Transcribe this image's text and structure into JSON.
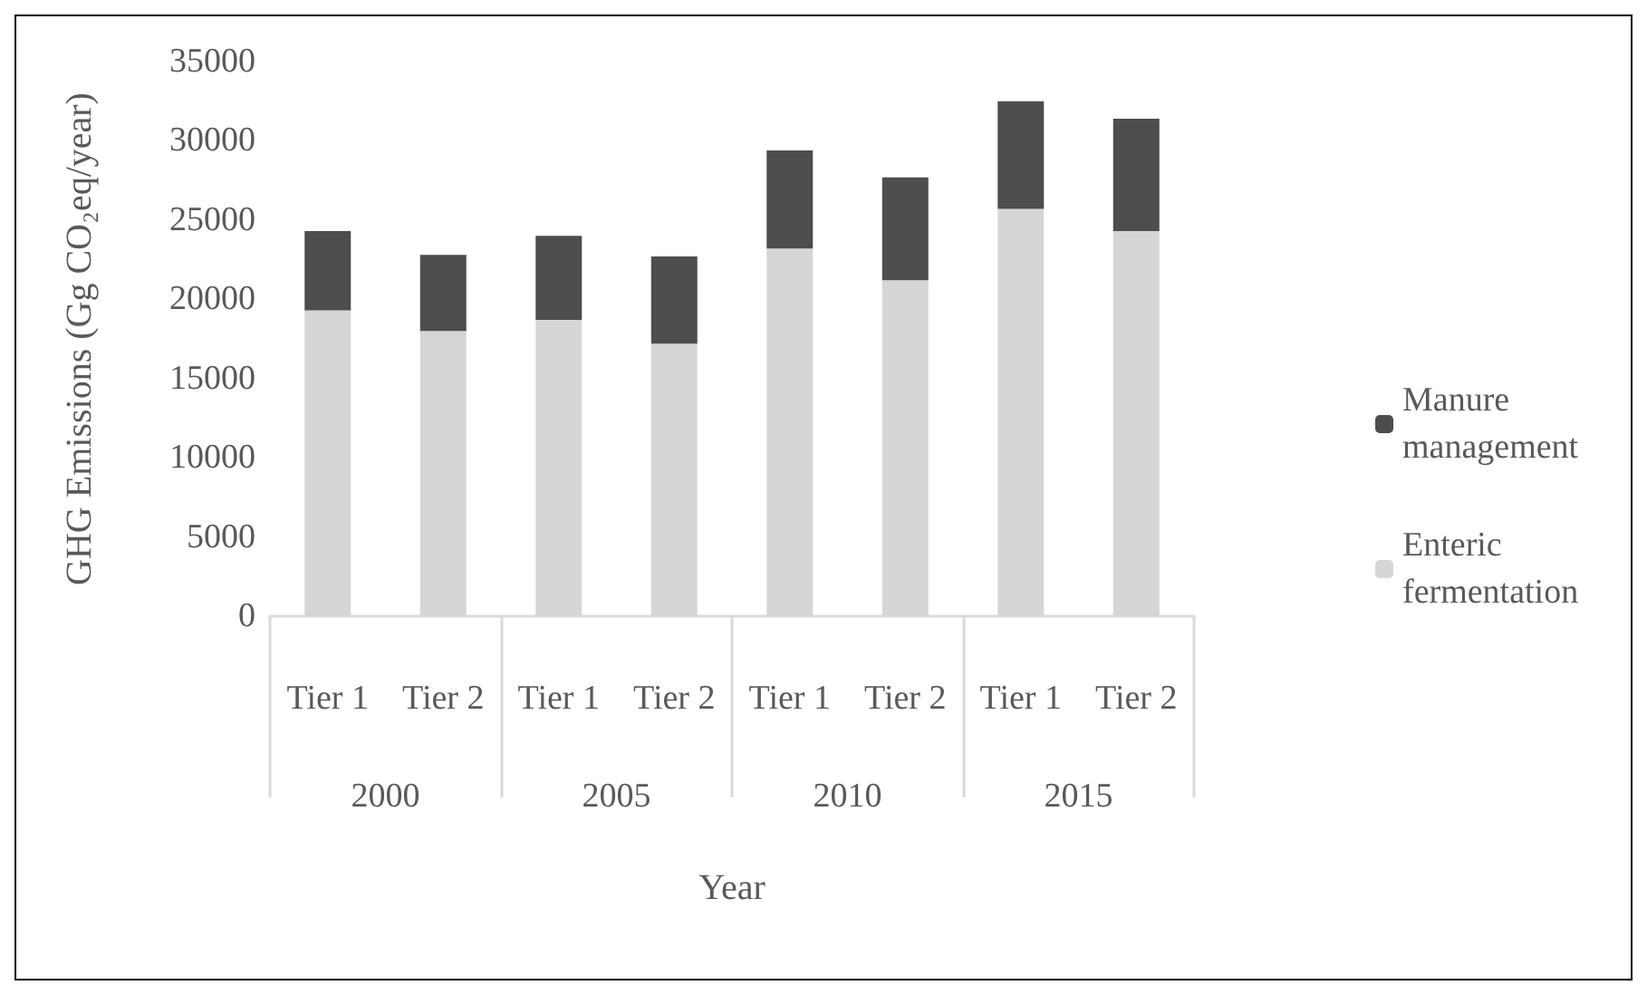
{
  "chart_data": {
    "type": "bar",
    "stacked": true,
    "xlabel": "Year",
    "ylabel": "GHG Emissions (Gg CO₂eq/year)",
    "categories": [
      "Tier 1",
      "Tier 2",
      "Tier 1",
      "Tier 2",
      "Tier 1",
      "Tier 2",
      "Tier 1",
      "Tier 2"
    ],
    "annotations": [
      "2000",
      "2005",
      "2010",
      "2015"
    ],
    "series": [
      {
        "name": "Enteric fermentation",
        "color": "#d6d6d6",
        "values": [
          19300,
          18000,
          18700,
          17200,
          23200,
          21200,
          25700,
          24300
        ]
      },
      {
        "name": "Manure management",
        "color": "#4d4d4d",
        "values": [
          5000,
          4800,
          5300,
          5500,
          6200,
          6500,
          6800,
          7100
        ]
      }
    ],
    "ylim": [
      0,
      35000
    ],
    "yticks": [
      0,
      5000,
      10000,
      15000,
      20000,
      25000,
      30000,
      35000
    ],
    "grid": false,
    "legend": "right"
  }
}
